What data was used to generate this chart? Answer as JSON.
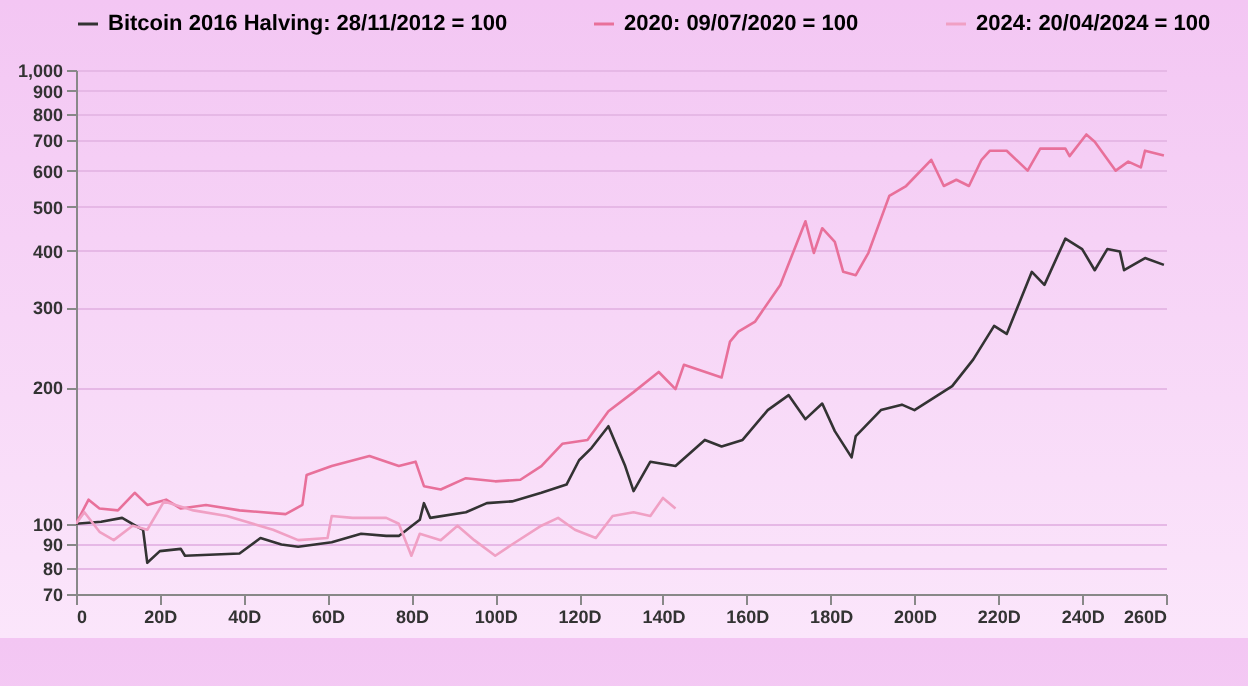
{
  "chart_data": {
    "type": "line",
    "log": "y",
    "grid": "y",
    "legend": "top",
    "marker": "none",
    "line_style": "solid",
    "xlim": [
      0,
      260
    ],
    "xticks": [
      {
        "value": 0,
        "label": "0"
      },
      {
        "value": 20,
        "label": "20D"
      },
      {
        "value": 40,
        "label": "40D"
      },
      {
        "value": 60,
        "label": "60D"
      },
      {
        "value": 80,
        "label": "80D"
      },
      {
        "value": 100,
        "label": "100D"
      },
      {
        "value": 120,
        "label": "120D"
      },
      {
        "value": 140,
        "label": "140D"
      },
      {
        "value": 160,
        "label": "160D"
      },
      {
        "value": 180,
        "label": "180D"
      },
      {
        "value": 200,
        "label": "200D"
      },
      {
        "value": 220,
        "label": "220D"
      },
      {
        "value": 240,
        "label": "240D"
      },
      {
        "value": 260,
        "label": "260D"
      }
    ],
    "ylim": [
      70,
      1000
    ],
    "yticks": [
      70,
      80,
      90,
      100,
      200,
      300,
      400,
      500,
      600,
      700,
      800,
      900,
      {
        "value": 1000,
        "label": "1,000"
      }
    ],
    "series": [
      {
        "name": "Bitcoin 2016 Halving: 28/11/2012 = 100",
        "color": "#333333",
        "x": [
          0,
          6,
          11,
          15,
          16,
          17,
          20,
          25,
          26,
          39,
          44,
          49,
          53,
          61,
          68,
          74,
          77,
          82,
          83,
          84.5,
          93,
          98,
          104,
          111,
          117,
          120,
          123,
          127,
          131,
          133,
          137,
          143,
          150,
          154,
          159,
          165,
          170,
          174,
          178,
          181,
          185,
          186,
          192,
          197,
          200,
          209,
          214,
          219,
          222,
          228,
          231,
          236,
          240,
          243,
          246,
          249,
          250,
          255,
          259.5
        ],
        "values": [
          100,
          101,
          103,
          98,
          97,
          82,
          87,
          88,
          85,
          86,
          93,
          90,
          89,
          91,
          95,
          94,
          94,
          102,
          111,
          103,
          106,
          111,
          112,
          117,
          122,
          138,
          147,
          164,
          134,
          118,
          137,
          134,
          153,
          148,
          153,
          178,
          192,
          170,
          184,
          160,
          140,
          156,
          178,
          183,
          178,
          201,
          230,
          273,
          262,
          359,
          336,
          425,
          403,
          362,
          403,
          398,
          362,
          385,
          372
        ]
      },
      {
        "name": "2020: 09/07/2020 = 100",
        "color": "#e8709a",
        "x": [
          0,
          3,
          5.6,
          10,
          14,
          17,
          21.5,
          25,
          31,
          39,
          50,
          54,
          55,
          61,
          70,
          77,
          81,
          83,
          87,
          93,
          100,
          106,
          111,
          116,
          122,
          127,
          133,
          139,
          143,
          145,
          154,
          156,
          158,
          162,
          168,
          174,
          176,
          178,
          181,
          183,
          186,
          189,
          194,
          198,
          204,
          207,
          210,
          213,
          216,
          218,
          222,
          227,
          230,
          236,
          237,
          241,
          243,
          248,
          251,
          254,
          255,
          259.5
        ],
        "values": [
          100,
          113,
          108,
          107,
          117,
          110,
          113,
          108,
          110,
          107,
          105,
          110,
          128,
          134,
          141,
          134,
          137,
          121,
          119,
          126,
          124,
          125,
          134,
          150,
          153,
          177,
          195,
          216,
          198,
          224,
          210,
          252,
          265,
          279,
          336,
          464,
          395,
          448,
          418,
          359,
          353,
          395,
          528,
          555,
          634,
          555,
          573,
          555,
          634,
          664,
          664,
          600,
          671,
          671,
          646,
          721,
          695,
          600,
          628,
          610,
          664,
          648
        ]
      },
      {
        "name": "2024: 20/04/2024 = 100",
        "color": "#f0a0c4",
        "x": [
          0,
          2,
          5.6,
          9,
          13.5,
          17,
          21,
          28,
          36,
          47,
          53,
          60,
          61,
          66,
          74,
          77,
          80,
          82,
          87,
          91,
          95,
          100,
          104,
          111,
          115,
          119,
          124,
          128,
          133,
          137,
          140,
          143
        ],
        "values": [
          100,
          106,
          96,
          92,
          99,
          97,
          112,
          107,
          104,
          97,
          92,
          93,
          104,
          103,
          103,
          100,
          85,
          95,
          92,
          99,
          92,
          85,
          90,
          99,
          103,
          97,
          93,
          104,
          106,
          104,
          114,
          108
        ]
      }
    ]
  }
}
